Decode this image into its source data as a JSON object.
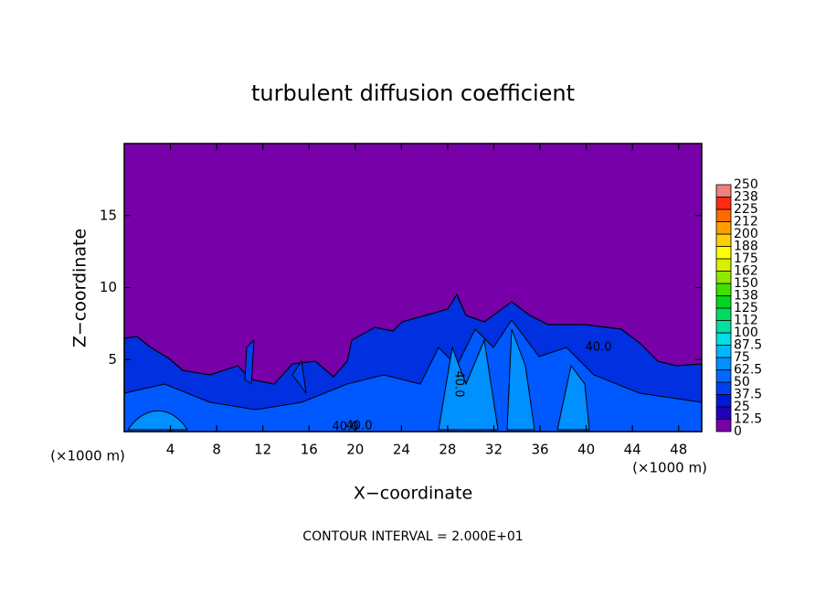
{
  "chart_data": {
    "type": "contour",
    "title": "turbulent diffusion coefficient",
    "x_label": "X−coordinate",
    "y_label": "Z−coordinate",
    "x_unit": "(×1000 m)",
    "footer": "CONTOUR INTERVAL = 2.000E+01",
    "xlim": [
      0,
      50
    ],
    "xticks": [
      4,
      8,
      12,
      16,
      20,
      24,
      28,
      32,
      36,
      40,
      44,
      48
    ],
    "ylim": [
      0,
      20
    ],
    "yticks": [
      5,
      10,
      15
    ],
    "contour_labels": [
      "40.0",
      "40.0",
      "40.0",
      "40.0"
    ],
    "colorbar": {
      "ticks": [
        0,
        12.5,
        25,
        37.5,
        50,
        62.5,
        75,
        87.5,
        100,
        {
          "value": 112.5,
          "label": "112"
        },
        125,
        {
          "value": 137.5,
          "label": "138"
        },
        150,
        {
          "value": 162.5,
          "label": "162"
        },
        175,
        {
          "value": 187.5,
          "label": "188"
        },
        200,
        {
          "value": 212.5,
          "label": "212"
        },
        225,
        {
          "value": 237.5,
          "label": "238"
        },
        250
      ],
      "colors": [
        "#7800a8",
        "#2000b8",
        "#0018d8",
        "#0040f0",
        "#0068ff",
        "#0090ff",
        "#00b8ff",
        "#00e0e8",
        "#00e0a0",
        "#00dc60",
        "#00d820",
        "#40e000",
        "#90e800",
        "#d8f000",
        "#ffff00",
        "#ffd000",
        "#ffa000",
        "#ff6a00",
        "#ff2a10",
        "#f08080"
      ]
    }
  }
}
